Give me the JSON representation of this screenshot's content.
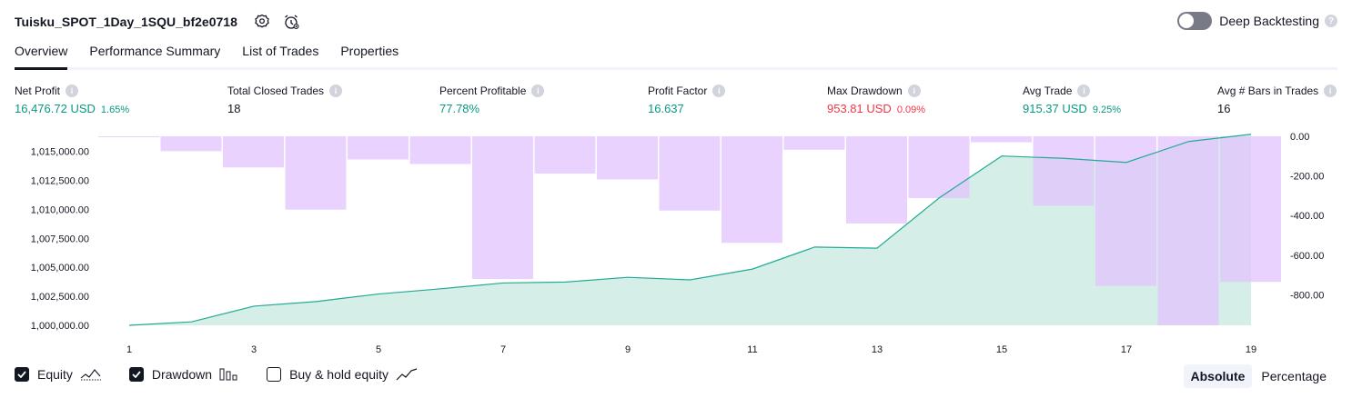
{
  "header": {
    "strategy_name": "Tuisku_SPOT_1Day_1SQU_bf2e0718",
    "deep_backtesting_label": "Deep Backtesting",
    "deep_backtesting_enabled": false
  },
  "tabs": [
    {
      "label": "Overview",
      "active": true
    },
    {
      "label": "Performance Summary",
      "active": false
    },
    {
      "label": "List of Trades",
      "active": false
    },
    {
      "label": "Properties",
      "active": false
    }
  ],
  "metrics": {
    "net_profit": {
      "label": "Net Profit",
      "value": "16,476.72 USD",
      "pct": "1.65%"
    },
    "total_closed_trades": {
      "label": "Total Closed Trades",
      "value": "18"
    },
    "percent_profitable": {
      "label": "Percent Profitable",
      "value": "77.78%"
    },
    "profit_factor": {
      "label": "Profit Factor",
      "value": "16.637"
    },
    "max_drawdown": {
      "label": "Max Drawdown",
      "value": "953.81 USD",
      "pct": "0.09%"
    },
    "avg_trade": {
      "label": "Avg Trade",
      "value": "915.37 USD",
      "pct": "9.25%"
    },
    "avg_bars": {
      "label": "Avg # Bars in Trades",
      "value": "16"
    }
  },
  "chart_data": {
    "type": "area",
    "x": [
      1,
      2,
      3,
      4,
      5,
      6,
      7,
      8,
      9,
      10,
      11,
      12,
      13,
      14,
      15,
      16,
      17,
      18,
      19
    ],
    "x_tick_labels": [
      "1",
      "3",
      "5",
      "7",
      "9",
      "11",
      "13",
      "15",
      "17",
      "19"
    ],
    "series": [
      {
        "axis": "left",
        "kind": "area-line",
        "values": [
          1000000,
          1000300,
          1001650,
          1002050,
          1002700,
          1003150,
          1003650,
          1003730,
          1004140,
          1003920,
          1004850,
          1006750,
          1006650,
          1011000,
          1014600,
          1014400,
          1014050,
          1015850,
          1016476.72
        ]
      },
      {
        "axis": "right",
        "kind": "bar",
        "values": [
          -3,
          -75,
          -157,
          -370,
          -117,
          -140,
          -720,
          -188,
          -218,
          -375,
          -538,
          -68,
          -440,
          -312,
          -30,
          -350,
          -755,
          -953.81,
          -735
        ]
      }
    ],
    "left_axis": {
      "min": 1000000,
      "max": 1016300,
      "ticks": [
        "1,000,000.00",
        "1,002,500.00",
        "1,005,000.00",
        "1,007,500.00",
        "1,010,000.00",
        "1,012,500.00",
        "1,015,000.00"
      ]
    },
    "right_axis": {
      "min": -953.81,
      "max": 0,
      "ticks": [
        "0.00",
        "-200.00",
        "-400.00",
        "-600.00",
        "-800.00"
      ]
    },
    "colors": {
      "equity_line": "#22ab94",
      "equity_fill": "#d5efe8",
      "drawdown_bar": "#e1c4fd",
      "drawdown_bar_overlap": "#b9b1e9"
    }
  },
  "legend": {
    "equity": {
      "label": "Equity",
      "checked": true
    },
    "drawdown": {
      "label": "Drawdown",
      "checked": true
    },
    "buy_hold": {
      "label": "Buy & hold equity",
      "checked": false
    }
  },
  "mode": {
    "absolute": "Absolute",
    "percentage": "Percentage",
    "selected": "Absolute"
  }
}
